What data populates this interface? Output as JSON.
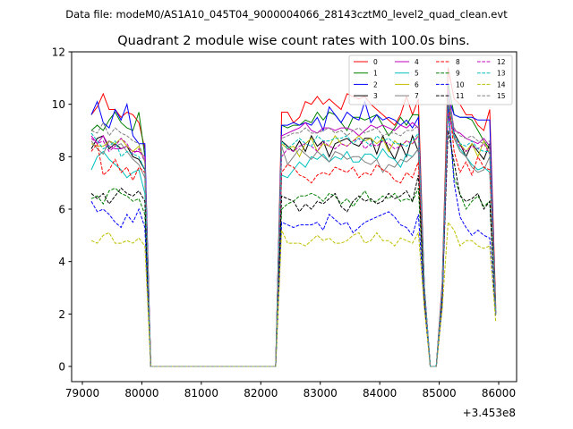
{
  "chart_data": {
    "type": "line",
    "suptitle": "Data file: modeM0/AS1A10_045T04_9000004066_28143cztM0_level2_quad_clean.evt",
    "title": "Quadrant 2 module wise count rates with 100.0s bins.",
    "xlabel": "",
    "ylabel": "",
    "x_offset_label": "+3.453e8",
    "xlim": [
      78819,
      86301
    ],
    "ylim": [
      -0.58,
      12
    ],
    "xticks": [
      79000,
      80000,
      81000,
      82000,
      83000,
      84000,
      85000,
      86000
    ],
    "yticks": [
      0,
      2,
      4,
      6,
      8,
      10,
      12
    ],
    "grid": false,
    "legend_placement": "top-right",
    "x": [
      79150,
      79250,
      79350,
      79450,
      79550,
      79650,
      79750,
      79850,
      79950,
      80050,
      80150,
      82150,
      82250,
      82350,
      82450,
      82550,
      82650,
      82750,
      82850,
      82950,
      83050,
      83150,
      83250,
      83350,
      83450,
      83550,
      83650,
      83750,
      83850,
      83950,
      84050,
      84150,
      84250,
      84350,
      84450,
      84550,
      84650,
      84750,
      84850,
      84950,
      85050,
      85150,
      85250,
      85350,
      85450,
      85550,
      85650,
      85750,
      85850,
      85950
    ],
    "series": [
      {
        "name": "0",
        "color": "#ff0000",
        "dashed": false,
        "values": [
          9.6,
          9.9,
          10.4,
          9.8,
          9.8,
          9.5,
          9.7,
          9.6,
          9.3,
          8.3,
          0,
          0,
          0,
          9.7,
          9.7,
          9.3,
          9.5,
          10.1,
          10.0,
          10.3,
          10.0,
          10.2,
          10.0,
          9.8,
          10.4,
          10.3,
          10.2,
          10.3,
          10.0,
          9.8,
          9.6,
          9.4,
          9.2,
          9.6,
          10.3,
          9.6,
          10.2,
          3.0,
          0,
          0,
          3.2,
          11.4,
          10.2,
          10.0,
          9.6,
          9.6,
          9.2,
          9.0,
          9.8,
          2.3
        ]
      },
      {
        "name": "1",
        "color": "#008000",
        "dashed": false,
        "values": [
          9.0,
          9.2,
          9.0,
          9.4,
          9.7,
          9.3,
          9.1,
          9.0,
          9.7,
          8.0,
          0,
          0,
          0,
          9.2,
          9.1,
          9.2,
          9.2,
          9.4,
          9.3,
          9.7,
          9.4,
          9.7,
          9.6,
          9.3,
          9.0,
          9.5,
          9.5,
          9.4,
          9.5,
          9.6,
          9.2,
          8.8,
          9.1,
          9.5,
          9.2,
          9.6,
          9.6,
          3.0,
          0,
          0,
          3.0,
          10.8,
          9.6,
          9.5,
          9.5,
          9.4,
          9.0,
          8.6,
          8.3,
          2.1
        ]
      },
      {
        "name": "2",
        "color": "#0000ff",
        "dashed": false,
        "values": [
          9.6,
          10.1,
          9.3,
          9.1,
          9.8,
          9.4,
          10.0,
          8.8,
          8.5,
          8.5,
          0,
          0,
          0,
          9.2,
          9.2,
          9.3,
          9.2,
          9.3,
          9.2,
          9.5,
          9.0,
          9.9,
          9.6,
          9.3,
          9.7,
          9.5,
          9.4,
          10.1,
          9.3,
          9.6,
          9.4,
          9.5,
          9.4,
          9.2,
          9.4,
          9.1,
          9.5,
          3.0,
          0,
          0,
          3.0,
          10.3,
          9.6,
          9.5,
          9.5,
          9.5,
          9.4,
          9.4,
          9.4,
          2.0
        ]
      },
      {
        "name": "3",
        "color": "#000000",
        "dashed": false,
        "values": [
          8.3,
          8.7,
          8.8,
          8.3,
          8.5,
          8.3,
          8.4,
          8.0,
          7.9,
          7.5,
          0,
          0,
          0,
          8.6,
          8.4,
          8.2,
          8.6,
          8.2,
          8.8,
          8.4,
          8.6,
          8.0,
          8.5,
          8.6,
          8.7,
          8.5,
          8.4,
          8.7,
          8.7,
          8.1,
          8.8,
          8.3,
          7.9,
          8.5,
          8.0,
          8.8,
          8.2,
          2.8,
          0,
          0,
          2.8,
          9.9,
          8.9,
          8.5,
          8.0,
          8.5,
          8.2,
          7.9,
          8.5,
          2.2
        ]
      },
      {
        "name": "4",
        "color": "#bf00bf",
        "dashed": false,
        "values": [
          8.8,
          8.5,
          8.8,
          8.4,
          8.3,
          8.3,
          8.4,
          8.2,
          8.2,
          8.0,
          0,
          0,
          0,
          8.8,
          8.9,
          9.0,
          9.1,
          9.3,
          9.0,
          8.9,
          9.1,
          9.1,
          9.0,
          9.1,
          9.1,
          9.0,
          8.8,
          9.0,
          9.2,
          9.1,
          9.2,
          9.1,
          9.0,
          9.2,
          9.1,
          9.3,
          9.1,
          3.0,
          0,
          0,
          3.0,
          10.6,
          9.0,
          8.9,
          8.7,
          8.6,
          8.5,
          8.7,
          8.4,
          2.0
        ]
      },
      {
        "name": "5",
        "color": "#00bfbf",
        "dashed": false,
        "values": [
          7.5,
          8.0,
          8.2,
          7.9,
          7.7,
          7.5,
          7.2,
          7.4,
          7.5,
          6.6,
          0,
          0,
          0,
          7.3,
          7.2,
          7.5,
          7.8,
          7.6,
          8.0,
          7.9,
          8.1,
          7.8,
          8.0,
          7.9,
          8.2,
          7.8,
          7.8,
          8.1,
          8.1,
          7.9,
          8.3,
          8.0,
          7.9,
          7.6,
          8.1,
          8.0,
          8.3,
          2.8,
          0,
          0,
          2.8,
          10.0,
          8.7,
          8.3,
          8.0,
          7.7,
          7.5,
          7.6,
          7.4,
          2.0
        ]
      },
      {
        "name": "6",
        "color": "#bfbf00",
        "dashed": false,
        "values": [
          8.5,
          8.4,
          8.4,
          8.6,
          8.5,
          8.7,
          8.4,
          8.2,
          8.4,
          7.8,
          0,
          0,
          0,
          8.5,
          8.3,
          8.4,
          8.0,
          8.5,
          8.7,
          8.2,
          8.5,
          8.4,
          8.8,
          8.5,
          8.4,
          8.6,
          8.8,
          8.6,
          8.7,
          8.5,
          8.7,
          8.2,
          8.6,
          8.4,
          8.6,
          8.5,
          8.8,
          2.8,
          0,
          0,
          2.8,
          9.8,
          8.7,
          8.5,
          8.2,
          8.5,
          8.0,
          8.6,
          8.1,
          2.0
        ]
      },
      {
        "name": "7",
        "color": "#808080",
        "dashed": false,
        "values": [
          8.6,
          8.3,
          8.1,
          8.6,
          8.4,
          8.5,
          8.2,
          7.9,
          7.7,
          7.2,
          0,
          0,
          0,
          8.4,
          7.7,
          8.0,
          8.3,
          8.1,
          7.9,
          8.2,
          8.0,
          7.8,
          8.2,
          8.1,
          7.9,
          8.0,
          8.0,
          7.8,
          7.7,
          7.9,
          7.4,
          7.7,
          7.6,
          7.9,
          7.8,
          8.0,
          8.3,
          2.8,
          0,
          0,
          2.8,
          10.2,
          8.7,
          8.2,
          8.0,
          7.6,
          7.4,
          7.5,
          8.0,
          2.0
        ]
      },
      {
        "name": "8",
        "color": "#ff0000",
        "dashed": true,
        "values": [
          8.2,
          8.5,
          7.3,
          7.5,
          7.9,
          7.4,
          7.6,
          7.1,
          7.6,
          7.4,
          0,
          0,
          0,
          7.4,
          7.7,
          7.6,
          7.3,
          7.2,
          7.0,
          7.3,
          7.4,
          7.3,
          7.6,
          7.5,
          7.4,
          7.6,
          7.2,
          7.4,
          7.3,
          7.7,
          7.5,
          7.4,
          7.1,
          7.0,
          7.4,
          7.2,
          7.8,
          2.7,
          0,
          0,
          2.7,
          10.4,
          8.2,
          7.4,
          7.8,
          7.3,
          8.0,
          7.6,
          7.5,
          2.0
        ]
      },
      {
        "name": "9",
        "color": "#008000",
        "dashed": true,
        "values": [
          6.4,
          6.5,
          6.2,
          6.7,
          6.8,
          6.6,
          6.5,
          6.3,
          6.4,
          5.8,
          0,
          0,
          0,
          6.0,
          6.2,
          6.3,
          6.5,
          6.5,
          6.6,
          6.5,
          6.3,
          6.6,
          6.5,
          6.2,
          6.4,
          6.1,
          6.4,
          6.7,
          6.3,
          6.3,
          6.5,
          6.4,
          6.6,
          6.3,
          6.4,
          6.3,
          6.8,
          2.5,
          0,
          0,
          2.5,
          9.8,
          7.2,
          6.6,
          6.0,
          6.3,
          6.5,
          6.1,
          6.3,
          2.0
        ]
      },
      {
        "name": "10",
        "color": "#0000ff",
        "dashed": true,
        "values": [
          6.3,
          5.9,
          6.0,
          5.8,
          5.5,
          5.3,
          5.8,
          5.5,
          6.0,
          5.3,
          0,
          0,
          0,
          5.5,
          5.4,
          5.3,
          5.4,
          5.4,
          5.4,
          5.5,
          5.2,
          5.8,
          5.6,
          5.4,
          5.5,
          5.1,
          5.3,
          5.5,
          5.6,
          5.7,
          5.8,
          5.9,
          5.7,
          5.4,
          5.3,
          5.0,
          5.8,
          2.3,
          0,
          0,
          2.3,
          10.0,
          7.0,
          5.7,
          5.3,
          5.0,
          5.2,
          5.0,
          4.9,
          1.9
        ]
      },
      {
        "name": "11",
        "color": "#000000",
        "dashed": true,
        "values": [
          6.6,
          6.4,
          6.6,
          6.2,
          6.5,
          6.8,
          6.6,
          6.5,
          6.7,
          6.3,
          0,
          0,
          0,
          6.5,
          6.4,
          6.3,
          5.9,
          6.2,
          6.0,
          6.3,
          6.2,
          6.4,
          6.6,
          6.1,
          5.9,
          6.3,
          6.5,
          6.3,
          6.4,
          6.2,
          6.3,
          6.6,
          6.4,
          6.5,
          6.7,
          6.3,
          7.3,
          2.6,
          0,
          0,
          2.6,
          9.0,
          7.8,
          6.5,
          6.3,
          6.4,
          6.6,
          6.0,
          6.3,
          2.0
        ]
      },
      {
        "name": "12",
        "color": "#bf00bf",
        "dashed": true,
        "values": [
          8.7,
          8.5,
          8.6,
          8.2,
          8.4,
          8.7,
          8.5,
          8.1,
          8.3,
          7.8,
          0,
          0,
          0,
          8.0,
          8.3,
          8.2,
          8.4,
          8.5,
          8.4,
          8.2,
          8.6,
          8.4,
          8.3,
          8.5,
          8.4,
          8.6,
          8.7,
          8.3,
          8.5,
          8.4,
          8.6,
          8.5,
          8.3,
          8.4,
          8.6,
          8.5,
          8.8,
          2.9,
          0,
          0,
          2.9,
          9.7,
          8.8,
          8.4,
          8.2,
          8.4,
          8.3,
          8.5,
          8.1,
          2.0
        ]
      },
      {
        "name": "13",
        "color": "#00bfbf",
        "dashed": true,
        "values": [
          8.9,
          8.6,
          8.3,
          8.4,
          8.6,
          8.0,
          8.2,
          8.1,
          8.0,
          7.5,
          0,
          0,
          0,
          8.6,
          8.3,
          8.5,
          8.7,
          8.5,
          8.4,
          8.8,
          8.6,
          8.6,
          8.7,
          8.7,
          8.8,
          8.5,
          8.7,
          8.6,
          8.4,
          8.8,
          8.6,
          8.7,
          8.5,
          8.5,
          8.4,
          8.6,
          8.9,
          3.0,
          0,
          0,
          3.0,
          10.4,
          8.8,
          8.5,
          8.4,
          8.6,
          8.3,
          8.2,
          8.2,
          2.0
        ]
      },
      {
        "name": "14",
        "color": "#bfbf00",
        "dashed": true,
        "values": [
          4.8,
          4.7,
          5.0,
          5.1,
          4.7,
          4.7,
          4.8,
          4.7,
          4.9,
          4.6,
          0,
          0,
          0,
          5.2,
          4.7,
          4.7,
          4.7,
          4.6,
          4.8,
          5.0,
          4.8,
          4.9,
          4.7,
          4.7,
          4.8,
          5.0,
          5.1,
          4.7,
          4.8,
          5.1,
          4.8,
          4.8,
          4.6,
          4.9,
          4.8,
          4.7,
          5.1,
          2.2,
          0,
          0,
          2.2,
          5.5,
          5.2,
          4.6,
          4.8,
          4.8,
          4.6,
          4.5,
          4.6,
          1.7
        ]
      },
      {
        "name": "15",
        "color": "#808080",
        "dashed": true,
        "values": [
          9.0,
          8.9,
          9.3,
          8.8,
          9.1,
          8.9,
          8.8,
          8.6,
          8.5,
          7.8,
          0,
          0,
          0,
          8.7,
          8.8,
          8.9,
          8.9,
          9.1,
          8.9,
          8.9,
          9.0,
          9.1,
          8.9,
          9.0,
          8.8,
          9.0,
          9.1,
          8.9,
          9.0,
          9.1,
          8.8,
          8.9,
          8.9,
          8.8,
          9.0,
          9.0,
          9.2,
          3.0,
          0,
          0,
          3.0,
          10.3,
          9.1,
          8.8,
          8.7,
          8.8,
          8.6,
          8.5,
          8.6,
          2.0
        ]
      }
    ]
  }
}
